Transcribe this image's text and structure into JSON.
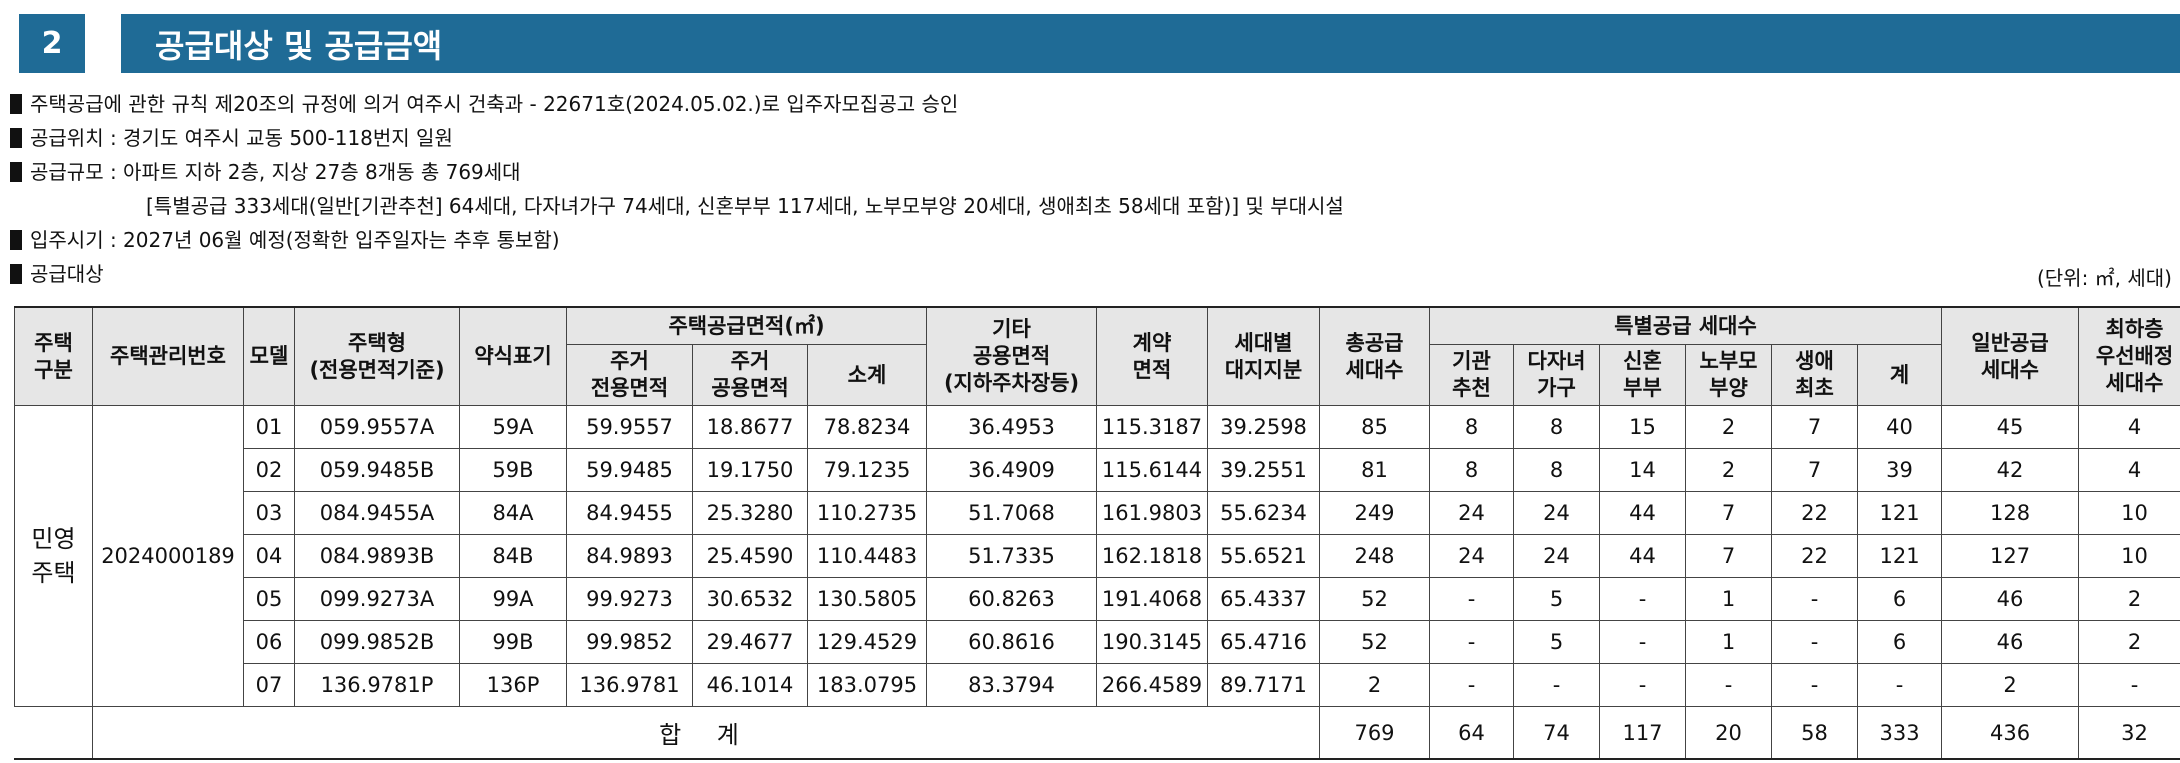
{
  "section": {
    "number": "2",
    "title": "공급대상 및 공급금액"
  },
  "info_lines": [
    "주택공급에 관한 규칙 제20조의 규정에 의거 여주시 건축과 - 22671호(2024.05.02.)로 입주자모집공고 승인",
    "공급위치 : 경기도 여주시 교동 500-118번지 일원",
    "공급규모 : 아파트 지하 2층, 지상 27층 8개동 총 769세대",
    "[특별공급 333세대(일반[기관추천] 64세대, 다자녀가구 74세대, 신혼부부 117세대, 노부모부양 20세대, 생애최초 58세대 포함)] 및 부대시설",
    "입주시기 : 2027년 06월 예정(정확한 입주일자는 추후 통보함)",
    "공급대상"
  ],
  "unit_note": "(단위: ㎡, 세대)",
  "headers": {
    "housing_type": [
      "주택",
      "구분"
    ],
    "mgmt_no": "주택관리번호",
    "model": "모델",
    "house_type": [
      "주택형",
      "(전용면적기준)"
    ],
    "abbr": "약식표기",
    "supply_area": "주택공급면적(㎡)",
    "exclusive": [
      "주거",
      "전용면적"
    ],
    "common": [
      "주거",
      "공용면적"
    ],
    "subtotal": "소계",
    "other_common": [
      "기타",
      "공용면적",
      "(지하주차장등)"
    ],
    "contract_area": [
      "계약",
      "면적"
    ],
    "land_share": [
      "세대별",
      "대지지분"
    ],
    "total_units": [
      "총공급",
      "세대수"
    ],
    "special": "특별공급 세대수",
    "agency": [
      "기관",
      "추천"
    ],
    "multi_child": [
      "다자녀",
      "가구"
    ],
    "newlywed": [
      "신혼",
      "부부"
    ],
    "elderly": [
      "노부모",
      "부양"
    ],
    "first_time": [
      "생애",
      "최초"
    ],
    "special_sum": "계",
    "general": [
      "일반공급",
      "세대수"
    ],
    "lowest_floor": [
      "최하층",
      "우선배정",
      "세대수"
    ]
  },
  "group": {
    "type": [
      "민영",
      "주택"
    ],
    "mgmt_no": "2024000189"
  },
  "rows": [
    [
      "01",
      "059.9557A",
      "59A",
      "59.9557",
      "18.8677",
      "78.8234",
      "36.4953",
      "115.3187",
      "39.2598",
      "85",
      "8",
      "8",
      "15",
      "2",
      "7",
      "40",
      "45",
      "4"
    ],
    [
      "02",
      "059.9485B",
      "59B",
      "59.9485",
      "19.1750",
      "79.1235",
      "36.4909",
      "115.6144",
      "39.2551",
      "81",
      "8",
      "8",
      "14",
      "2",
      "7",
      "39",
      "42",
      "4"
    ],
    [
      "03",
      "084.9455A",
      "84A",
      "84.9455",
      "25.3280",
      "110.2735",
      "51.7068",
      "161.9803",
      "55.6234",
      "249",
      "24",
      "24",
      "44",
      "7",
      "22",
      "121",
      "128",
      "10"
    ],
    [
      "04",
      "084.9893B",
      "84B",
      "84.9893",
      "25.4590",
      "110.4483",
      "51.7335",
      "162.1818",
      "55.6521",
      "248",
      "24",
      "24",
      "44",
      "7",
      "22",
      "121",
      "127",
      "10"
    ],
    [
      "05",
      "099.9273A",
      "99A",
      "99.9273",
      "30.6532",
      "130.5805",
      "60.8263",
      "191.4068",
      "65.4337",
      "52",
      "-",
      "5",
      "-",
      "1",
      "-",
      "6",
      "46",
      "2"
    ],
    [
      "06",
      "099.9852B",
      "99B",
      "99.9852",
      "29.4677",
      "129.4529",
      "60.8616",
      "190.3145",
      "65.4716",
      "52",
      "-",
      "5",
      "-",
      "1",
      "-",
      "6",
      "46",
      "2"
    ],
    [
      "07",
      "136.9781P",
      "136P",
      "136.9781",
      "46.1014",
      "183.0795",
      "83.3794",
      "266.4589",
      "89.7171",
      "2",
      "-",
      "-",
      "-",
      "-",
      "-",
      "-",
      "2",
      "-"
    ]
  ],
  "total": {
    "label": "합 계",
    "values": [
      "769",
      "64",
      "74",
      "117",
      "20",
      "58",
      "333",
      "436",
      "32"
    ]
  }
}
